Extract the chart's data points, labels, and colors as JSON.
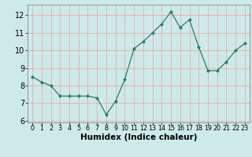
{
  "x": [
    0,
    1,
    2,
    3,
    4,
    5,
    6,
    7,
    8,
    9,
    10,
    11,
    12,
    13,
    14,
    15,
    16,
    17,
    18,
    19,
    20,
    21,
    22,
    23
  ],
  "y": [
    8.5,
    8.2,
    8.0,
    7.4,
    7.4,
    7.4,
    7.4,
    7.3,
    6.35,
    7.1,
    8.35,
    10.1,
    10.5,
    11.0,
    11.5,
    12.2,
    11.3,
    11.75,
    10.2,
    8.85,
    8.85,
    9.35,
    10.0,
    10.4
  ],
  "xlabel": "Humidex (Indice chaleur)",
  "ylim": [
    5.9,
    12.6
  ],
  "xlim": [
    -0.5,
    23.5
  ],
  "yticks": [
    6,
    7,
    8,
    9,
    10,
    11,
    12
  ],
  "xtick_labels": [
    "0",
    "1",
    "2",
    "3",
    "4",
    "5",
    "6",
    "7",
    "8",
    "9",
    "10",
    "11",
    "12",
    "13",
    "14",
    "15",
    "16",
    "17",
    "18",
    "19",
    "20",
    "21",
    "22",
    "23"
  ],
  "line_color": "#2a7a6a",
  "marker_color": "#2a7a6a",
  "bg_color": "#ceeae8",
  "grid_color": "#e8a0a0",
  "axis_bg": "#ceeae8",
  "spine_color": "#777777",
  "xlabel_fontsize": 7.5,
  "ytick_fontsize": 7,
  "xtick_fontsize": 5.8
}
